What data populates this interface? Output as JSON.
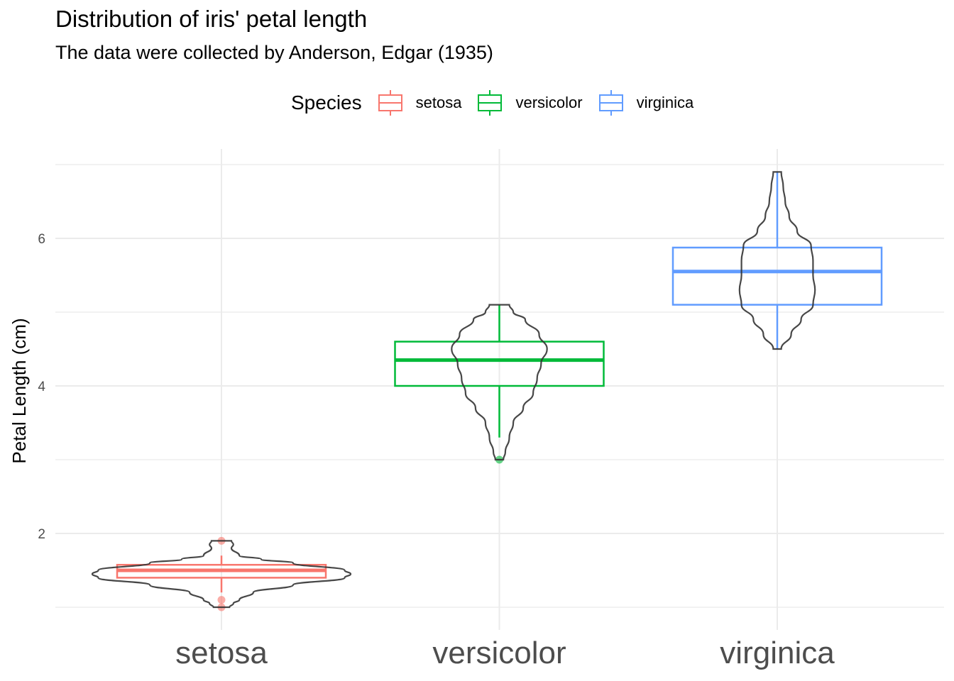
{
  "chart_data": {
    "type": "violin+box",
    "title": "Distribution of iris' petal length",
    "subtitle": "The data were collected by Anderson, Edgar (1935)",
    "xlabel": "",
    "ylabel": "Petal Length (cm)",
    "ylim": [
      0.85,
      7.05
    ],
    "yticks": [
      2,
      4,
      6
    ],
    "grid": true,
    "legend": {
      "title": "Species",
      "position": "top"
    },
    "categories": [
      "setosa",
      "versicolor",
      "virginica"
    ],
    "series": [
      {
        "name": "setosa",
        "color": "#F8766D",
        "min": 1.0,
        "q1": 1.4,
        "median": 1.5,
        "q3": 1.575,
        "max": 1.9,
        "whisker_low": 1.2,
        "whisker_high": 1.7,
        "outliers": [
          1.0,
          1.1,
          1.9
        ],
        "violin": [
          [
            1.0,
            0.04
          ],
          [
            1.05,
            0.06
          ],
          [
            1.1,
            0.09
          ],
          [
            1.2,
            0.16
          ],
          [
            1.3,
            0.36
          ],
          [
            1.4,
            0.62
          ],
          [
            1.45,
            0.65
          ],
          [
            1.5,
            0.62
          ],
          [
            1.6,
            0.36
          ],
          [
            1.65,
            0.2
          ],
          [
            1.7,
            0.09
          ],
          [
            1.8,
            0.05
          ],
          [
            1.85,
            0.06
          ],
          [
            1.9,
            0.05
          ]
        ]
      },
      {
        "name": "versicolor",
        "color": "#00BA38",
        "min": 3.0,
        "q1": 4.0,
        "median": 4.35,
        "q3": 4.6,
        "max": 5.1,
        "whisker_low": 3.3,
        "whisker_high": 5.1,
        "outliers": [
          3.0
        ],
        "violin": [
          [
            3.0,
            0.02
          ],
          [
            3.1,
            0.03
          ],
          [
            3.3,
            0.05
          ],
          [
            3.5,
            0.07
          ],
          [
            3.7,
            0.12
          ],
          [
            3.9,
            0.17
          ],
          [
            4.1,
            0.19
          ],
          [
            4.3,
            0.21
          ],
          [
            4.5,
            0.24
          ],
          [
            4.7,
            0.2
          ],
          [
            4.9,
            0.13
          ],
          [
            5.0,
            0.07
          ],
          [
            5.1,
            0.05
          ]
        ]
      },
      {
        "name": "virginica",
        "color": "#619CFF",
        "min": 4.5,
        "q1": 5.1,
        "median": 5.55,
        "q3": 5.875,
        "max": 6.9,
        "whisker_low": 4.5,
        "whisker_high": 6.9,
        "outliers": [],
        "violin": [
          [
            4.5,
            0.02
          ],
          [
            4.7,
            0.07
          ],
          [
            4.9,
            0.12
          ],
          [
            5.1,
            0.18
          ],
          [
            5.3,
            0.19
          ],
          [
            5.5,
            0.18
          ],
          [
            5.7,
            0.18
          ],
          [
            5.9,
            0.17
          ],
          [
            6.1,
            0.1
          ],
          [
            6.3,
            0.06
          ],
          [
            6.5,
            0.04
          ],
          [
            6.7,
            0.03
          ],
          [
            6.9,
            0.02
          ]
        ]
      }
    ]
  }
}
